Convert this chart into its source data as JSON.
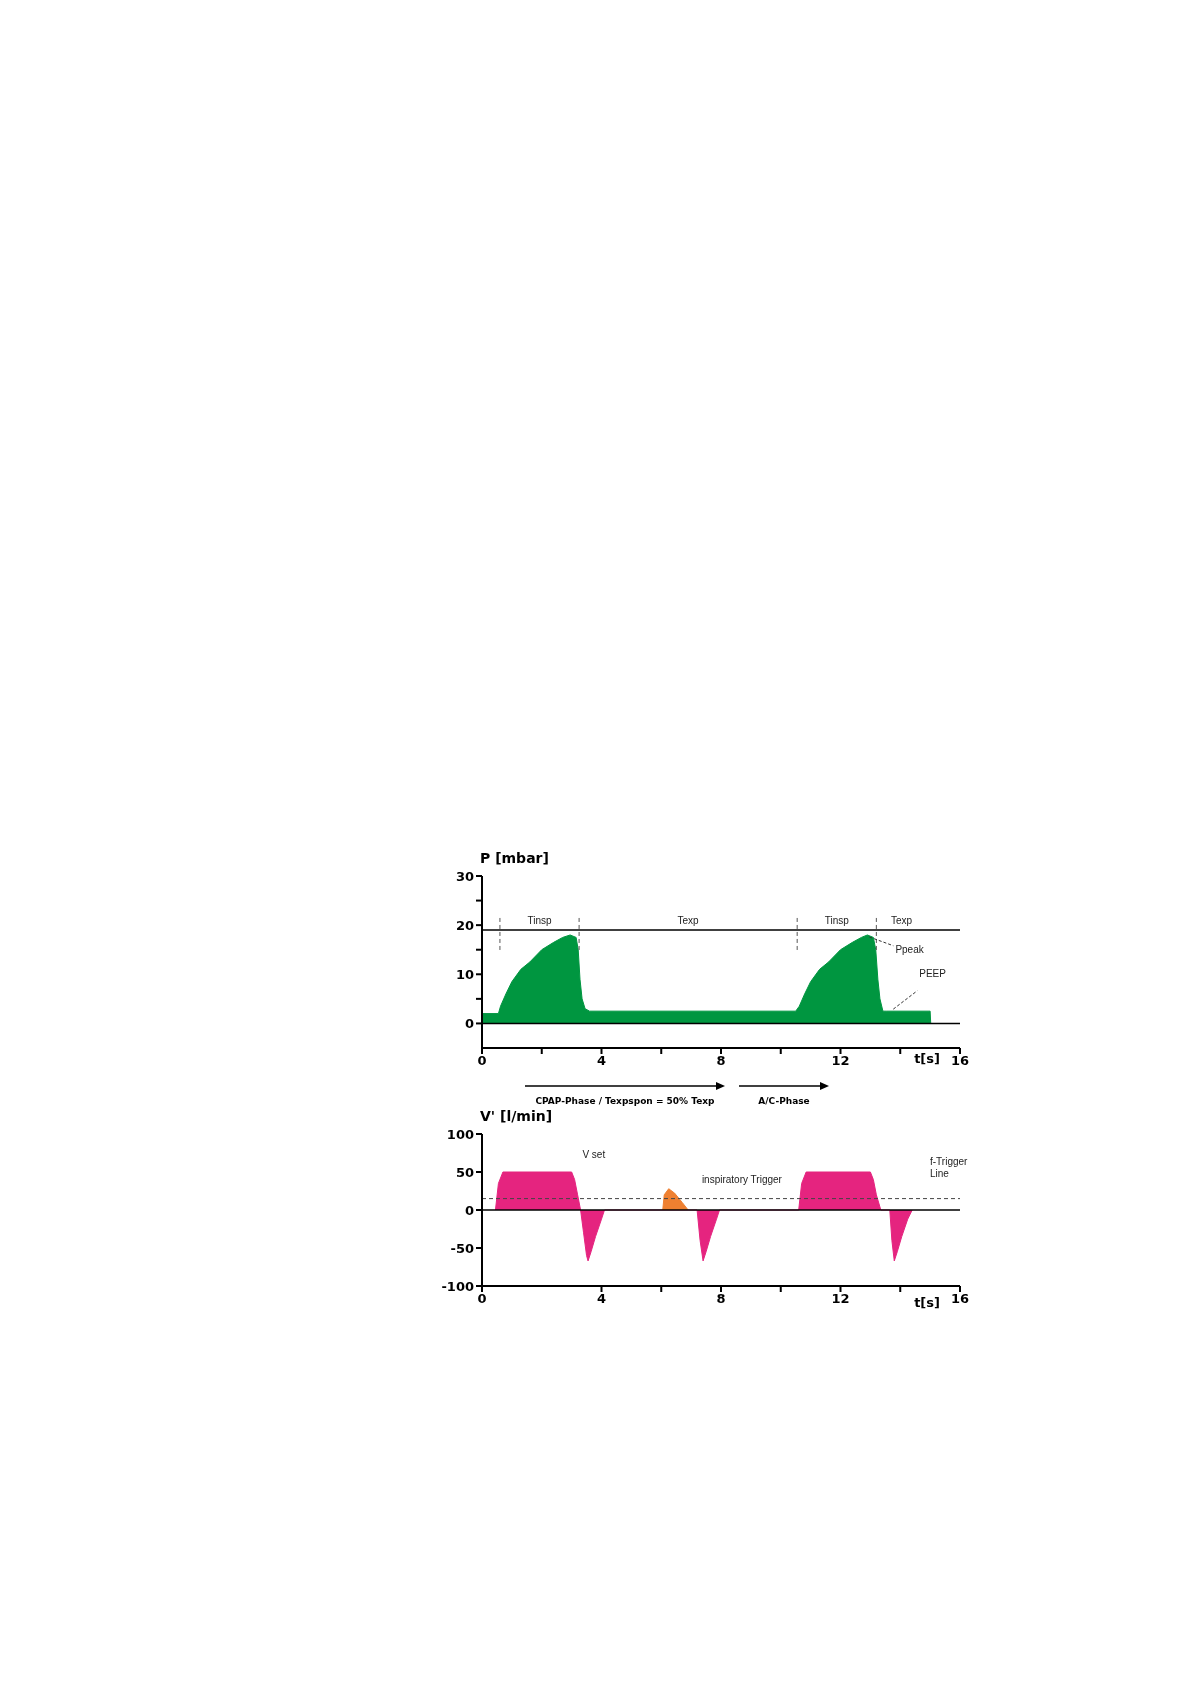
{
  "chart_data": [
    {
      "type": "area",
      "ylabel": "P  [mbar]",
      "xlabel": "t[s]",
      "xlim": [
        0,
        16
      ],
      "ylim": [
        -5,
        30
      ],
      "xticks": [
        0,
        {
          "value": 2,
          "label": null
        },
        4,
        {
          "value": 6,
          "label": null
        },
        8,
        {
          "value": 10,
          "label": null
        },
        12,
        {
          "value": 14,
          "label": null
        },
        16
      ],
      "yticks": [
        0,
        {
          "value": 5,
          "label": null
        },
        10,
        {
          "value": 15,
          "label": null
        },
        20,
        {
          "value": 25,
          "label": null
        },
        30
      ],
      "series": [
        {
          "color": "#009640",
          "x": [
            0,
            0.55,
            0.62,
            0.8,
            1.0,
            1.3,
            1.6,
            2.0,
            2.4,
            2.7,
            2.95,
            3.15,
            3.22,
            3.28,
            3.35,
            3.45,
            3.6,
            10.5,
            10.62,
            10.8,
            11.0,
            11.3,
            11.6,
            12.0,
            12.4,
            12.7,
            12.9,
            13.1,
            13.18,
            13.25,
            13.32,
            13.42,
            13.55,
            15.0,
            15.02
          ],
          "values": [
            2,
            2,
            3.5,
            6,
            8.5,
            11,
            12.5,
            15,
            16.5,
            17.5,
            18,
            17.5,
            15,
            9,
            5,
            3,
            2.5,
            2.5,
            3.5,
            6,
            8.5,
            11,
            12.5,
            15,
            16.5,
            17.5,
            18,
            17.5,
            15,
            9,
            5,
            2.5,
            2.5,
            2.5,
            0
          ]
        }
      ],
      "ref_lines": [
        {
          "axis": "y",
          "value": 0,
          "color": "#000000"
        },
        {
          "axis": "y",
          "value": 19,
          "color": "#000000"
        },
        {
          "axis": "x",
          "value": 0.6,
          "color": "#555555",
          "line_style": "dashed"
        },
        {
          "axis": "x",
          "value": 3.25,
          "color": "#555555",
          "line_style": "dashed"
        },
        {
          "axis": "x",
          "value": 10.55,
          "color": "#555555",
          "line_style": "dashed"
        },
        {
          "axis": "x",
          "value": 13.2,
          "color": "#555555",
          "line_style": "dashed"
        }
      ],
      "annotations": [
        "Tinsp",
        "Texp",
        "Tinsp",
        "Texp",
        {
          "text": "Ppeak",
          "x": 12.9,
          "y": 18
        },
        {
          "text": "PEEP",
          "x": 13.7,
          "y": 2.5
        },
        "CPAP-Phase  / Texpspon = 50% Texp",
        "A/C-Phase"
      ]
    },
    {
      "type": "area",
      "ylabel": "V' [l/min]",
      "xlabel": "t[s]",
      "xlim": [
        0,
        16
      ],
      "ylim": [
        -100,
        100
      ],
      "xticks": [
        0,
        4,
        {
          "value": 6,
          "label": null
        },
        8,
        {
          "value": 10,
          "label": null
        },
        12,
        {
          "value": 14,
          "label": null
        },
        16
      ],
      "yticks": [
        -100,
        -50,
        0,
        50,
        100
      ],
      "series": [
        {
          "color": "#e5247f",
          "x": [
            0.45,
            0.55,
            0.7,
            3.0,
            3.1,
            3.2,
            3.3,
            3.4,
            3.5,
            3.55,
            3.65,
            3.8,
            4.0,
            4.1,
            7.2,
            7.3,
            7.4,
            7.5,
            7.65,
            7.85,
            7.95,
            10.6,
            10.7,
            10.85,
            13.0,
            13.1,
            13.2,
            13.35,
            13.65,
            13.72,
            13.8,
            13.9,
            14.05,
            14.25,
            14.4
          ],
          "values": [
            0,
            35,
            50,
            50,
            40,
            20,
            0,
            -30,
            -60,
            -67,
            -55,
            -35,
            -12,
            0,
            0,
            -40,
            -67,
            -55,
            -35,
            -12,
            0,
            0,
            35,
            50,
            50,
            40,
            20,
            0,
            0,
            -40,
            -67,
            -55,
            -35,
            -12,
            0
          ]
        },
        {
          "color": "#ef8030",
          "x": [
            6.05,
            6.1,
            6.25,
            6.45,
            6.7,
            6.9
          ],
          "values": [
            0,
            20,
            28,
            22,
            10,
            0
          ]
        }
      ],
      "ref_lines": [
        {
          "axis": "y",
          "value": 0,
          "color": "#000000"
        },
        {
          "axis": "y",
          "value": 15,
          "label": "f-Trigger Line",
          "color": "#444444",
          "line_style": "dashed"
        }
      ],
      "annotations": [
        "V set",
        "inspiratory Trigger"
      ]
    }
  ]
}
